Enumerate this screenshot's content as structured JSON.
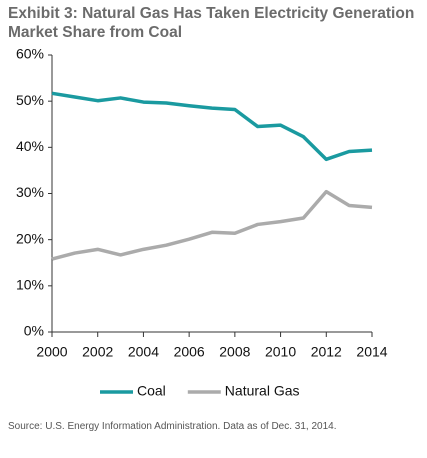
{
  "chart_data": {
    "type": "line",
    "title": "Exhibit 3: Natural Gas Has Taken Electricity Generation Market Share from Coal",
    "x": [
      2000,
      2001,
      2002,
      2003,
      2004,
      2005,
      2006,
      2007,
      2008,
      2009,
      2010,
      2011,
      2012,
      2013,
      2014
    ],
    "series": [
      {
        "name": "Coal",
        "color": "#1a9aa0",
        "values": [
          51.7,
          50.9,
          50.1,
          50.7,
          49.8,
          49.6,
          49.0,
          48.5,
          48.2,
          44.5,
          44.8,
          42.3,
          37.4,
          39.1,
          39.4
        ]
      },
      {
        "name": "Natural Gas",
        "color": "#ababab",
        "values": [
          15.8,
          17.1,
          17.9,
          16.7,
          17.9,
          18.8,
          20.1,
          21.6,
          21.4,
          23.3,
          23.9,
          24.7,
          30.4,
          27.4,
          27.0
        ]
      }
    ],
    "xlim": [
      2000,
      2014
    ],
    "xticks": [
      2000,
      2002,
      2004,
      2006,
      2008,
      2010,
      2012,
      2014
    ],
    "ylim": [
      0,
      60
    ],
    "yticks": [
      {
        "value": 0,
        "label": "0%"
      },
      {
        "value": 10,
        "label": "10%"
      },
      {
        "value": 20,
        "label": "20%"
      },
      {
        "value": 30,
        "label": "30%"
      },
      {
        "value": 40,
        "label": "40%"
      },
      {
        "value": 50,
        "label": "50%"
      },
      {
        "value": 60,
        "label": "60%"
      }
    ],
    "grid": false,
    "legend": "bottom",
    "note": "Source: U.S. Energy Information Administration. Data as of Dec. 31, 2014."
  }
}
